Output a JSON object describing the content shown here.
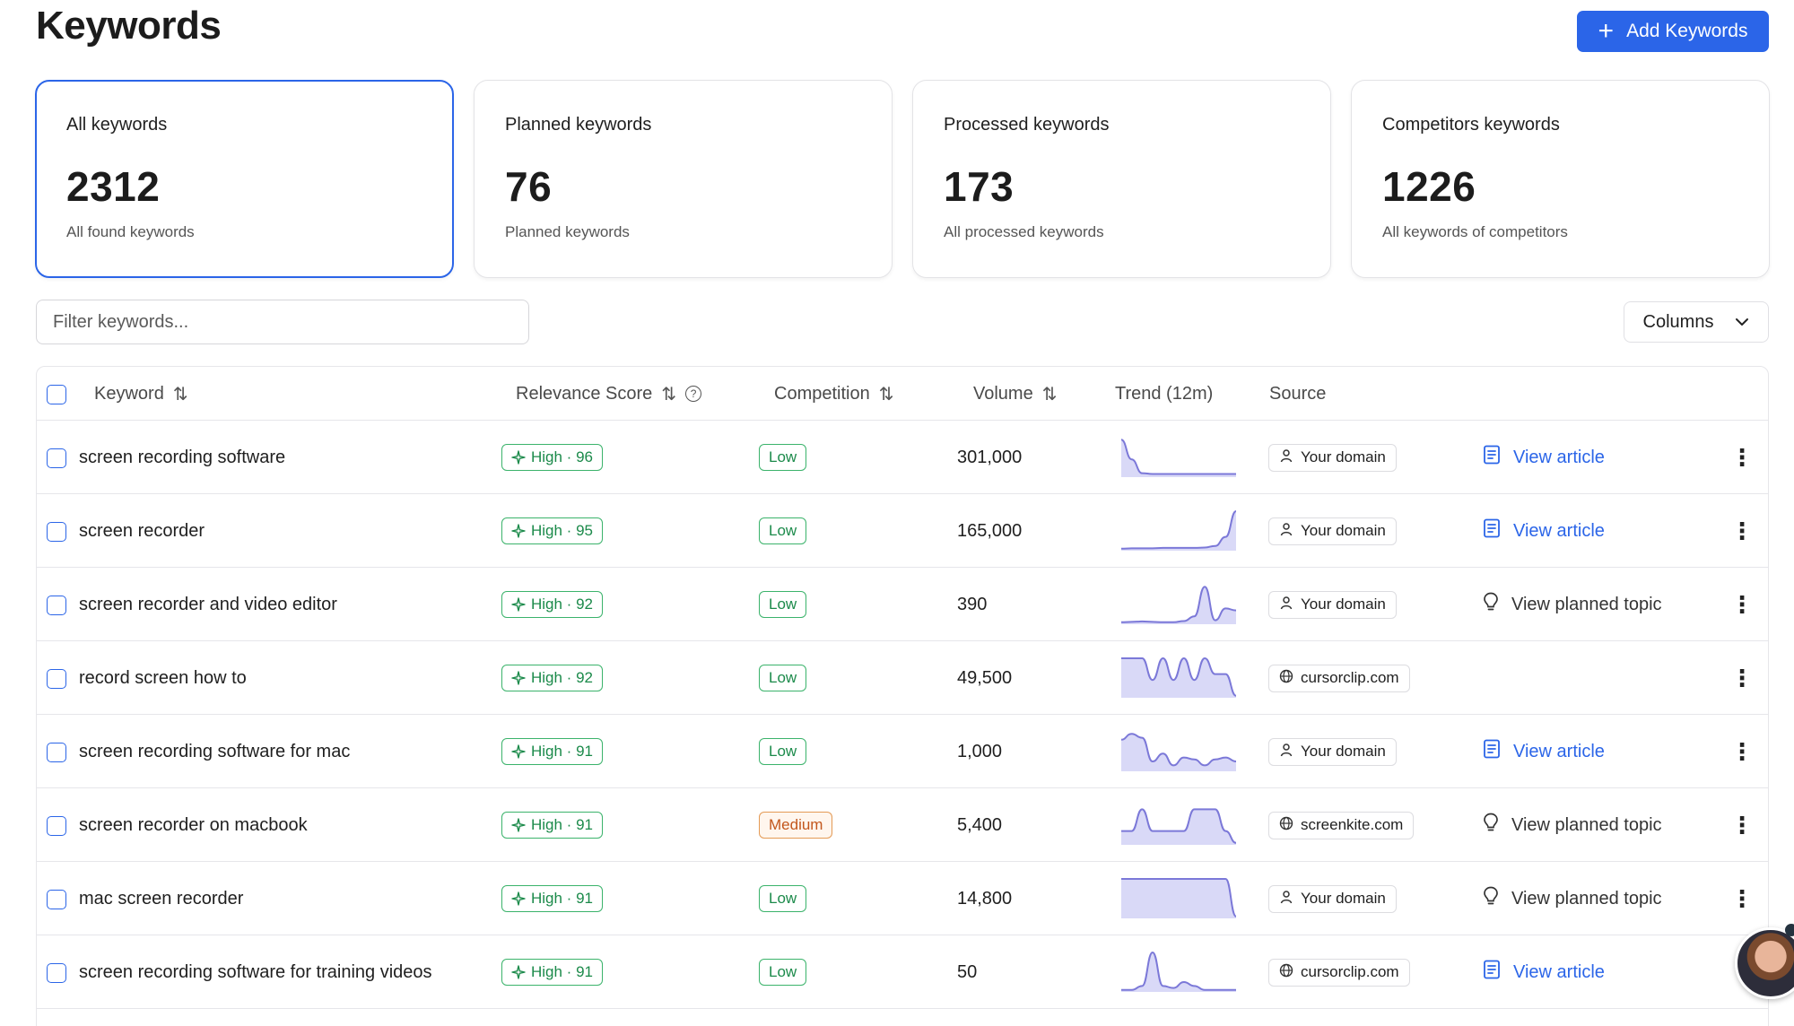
{
  "page": {
    "title": "Keywords",
    "add_button": "Add Keywords"
  },
  "cards": [
    {
      "title": "All keywords",
      "value": "2312",
      "sub": "All found keywords",
      "active": true
    },
    {
      "title": "Planned keywords",
      "value": "76",
      "sub": "Planned keywords",
      "active": false
    },
    {
      "title": "Processed keywords",
      "value": "173",
      "sub": "All processed keywords",
      "active": false
    },
    {
      "title": "Competitors keywords",
      "value": "1226",
      "sub": "All keywords of competitors",
      "active": false
    }
  ],
  "filter": {
    "placeholder": "Filter keywords..."
  },
  "columns_button": "Columns",
  "table": {
    "headers": {
      "keyword": "Keyword",
      "relevance": "Relevance Score",
      "competition": "Competition",
      "volume": "Volume",
      "trend": "Trend (12m)",
      "source": "Source"
    },
    "rows": [
      {
        "keyword": "screen recording software",
        "relevance": "High · 96",
        "competition": "Low",
        "volume": "301,000",
        "trend": [
          95,
          45,
          10,
          8,
          8,
          8,
          8,
          8,
          8,
          8,
          8,
          8
        ],
        "source": "Your domain",
        "source_icon": "user-icon",
        "action": "View article",
        "action_icon": "document-icon"
      },
      {
        "keyword": "screen recorder",
        "relevance": "High · 95",
        "competition": "Low",
        "volume": "165,000",
        "trend": [
          5,
          6,
          6,
          6,
          7,
          7,
          7,
          7,
          8,
          12,
          35,
          100
        ],
        "source": "Your domain",
        "source_icon": "user-icon",
        "action": "View article",
        "action_icon": "document-icon"
      },
      {
        "keyword": "screen recorder and video editor",
        "relevance": "High · 92",
        "competition": "Low",
        "volume": "390",
        "trend": [
          5,
          6,
          7,
          6,
          5,
          5,
          8,
          20,
          95,
          10,
          40,
          35
        ],
        "source": "Your domain",
        "source_icon": "user-icon",
        "action": "View planned topic",
        "action_icon": "lightbulb-icon"
      },
      {
        "keyword": "record screen how to",
        "relevance": "High · 92",
        "competition": "Low",
        "volume": "49,500",
        "trend": [
          100,
          100,
          100,
          45,
          100,
          45,
          100,
          45,
          100,
          60,
          60,
          5
        ],
        "source": "cursorclip.com",
        "source_icon": "globe-icon",
        "action": "",
        "action_icon": ""
      },
      {
        "keyword": "screen recording software for mac",
        "relevance": "High · 91",
        "competition": "Low",
        "volume": "1,000",
        "trend": [
          80,
          95,
          85,
          25,
          45,
          15,
          35,
          30,
          15,
          30,
          35,
          25
        ],
        "source": "Your domain",
        "source_icon": "user-icon",
        "action": "View article",
        "action_icon": "document-icon"
      },
      {
        "keyword": "screen recorder on macbook",
        "relevance": "High · 91",
        "competition": "Medium",
        "volume": "5,400",
        "trend": [
          35,
          35,
          90,
          35,
          35,
          35,
          35,
          90,
          90,
          90,
          35,
          5
        ],
        "source": "screenkite.com",
        "source_icon": "globe-icon",
        "action": "View planned topic",
        "action_icon": "lightbulb-icon"
      },
      {
        "keyword": "mac screen recorder",
        "relevance": "High · 91",
        "competition": "Low",
        "volume": "14,800",
        "trend": [
          100,
          100,
          100,
          100,
          100,
          100,
          100,
          100,
          100,
          100,
          100,
          5
        ],
        "source": "Your domain",
        "source_icon": "user-icon",
        "action": "View planned topic",
        "action_icon": "lightbulb-icon"
      },
      {
        "keyword": "screen recording software for training videos",
        "relevance": "High · 91",
        "competition": "Low",
        "volume": "50",
        "trend": [
          5,
          5,
          15,
          100,
          15,
          10,
          25,
          15,
          5,
          5,
          5,
          5
        ],
        "source": "cursorclip.com",
        "source_icon": "globe-icon",
        "action": "View article",
        "action_icon": "document-icon"
      }
    ]
  },
  "colors": {
    "accent": "#2b65e8",
    "trend_fill": "#d9d9f7",
    "trend_line": "#7b78d8",
    "high": "#1b8a4a",
    "medium": "#c2571d"
  }
}
